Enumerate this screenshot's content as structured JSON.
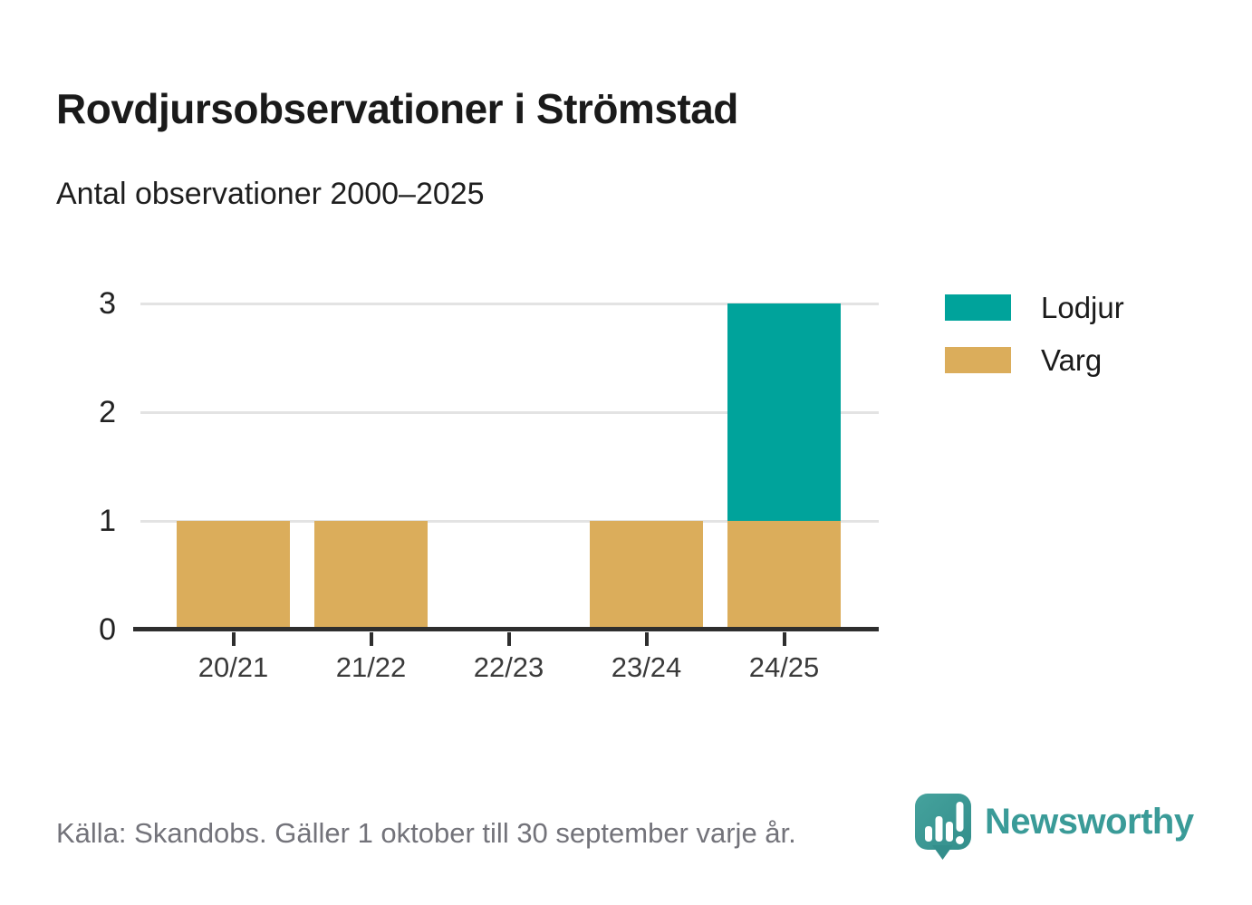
{
  "header": {
    "title": "Rovdjursobservationer i Strömstad",
    "subtitle": "Antal observationer 2000–2025"
  },
  "chart_data": {
    "type": "bar",
    "stacked": true,
    "title": "Rovdjursobservationer i Strömstad",
    "subtitle": "Antal observationer 2000–2025",
    "xlabel": "",
    "ylabel": "",
    "categories": [
      "20/21",
      "21/22",
      "22/23",
      "23/24",
      "24/25"
    ],
    "series": [
      {
        "name": "Varg",
        "color": "#dbad5b",
        "values": [
          1,
          1,
          0,
          1,
          1
        ]
      },
      {
        "name": "Lodjur",
        "color": "#00a39b",
        "values": [
          0,
          0,
          0,
          0,
          2
        ]
      }
    ],
    "totals": [
      1,
      1,
      0,
      1,
      3
    ],
    "yticks": [
      0,
      1,
      2,
      3
    ],
    "ylim": [
      0,
      3
    ],
    "grid": "horizontal",
    "gridline_color": "#e3e3e3",
    "axis_color": "#2e2e2e",
    "legend_position": "top-right",
    "legend": [
      {
        "label": "Lodjur",
        "color": "#00a39b"
      },
      {
        "label": "Varg",
        "color": "#dbad5b"
      }
    ]
  },
  "footer": {
    "source": "Källa: Skandobs. Gäller 1 oktober till 30 september varje år.",
    "brand": "Newsworthy",
    "brand_color": "#3a9b98"
  }
}
